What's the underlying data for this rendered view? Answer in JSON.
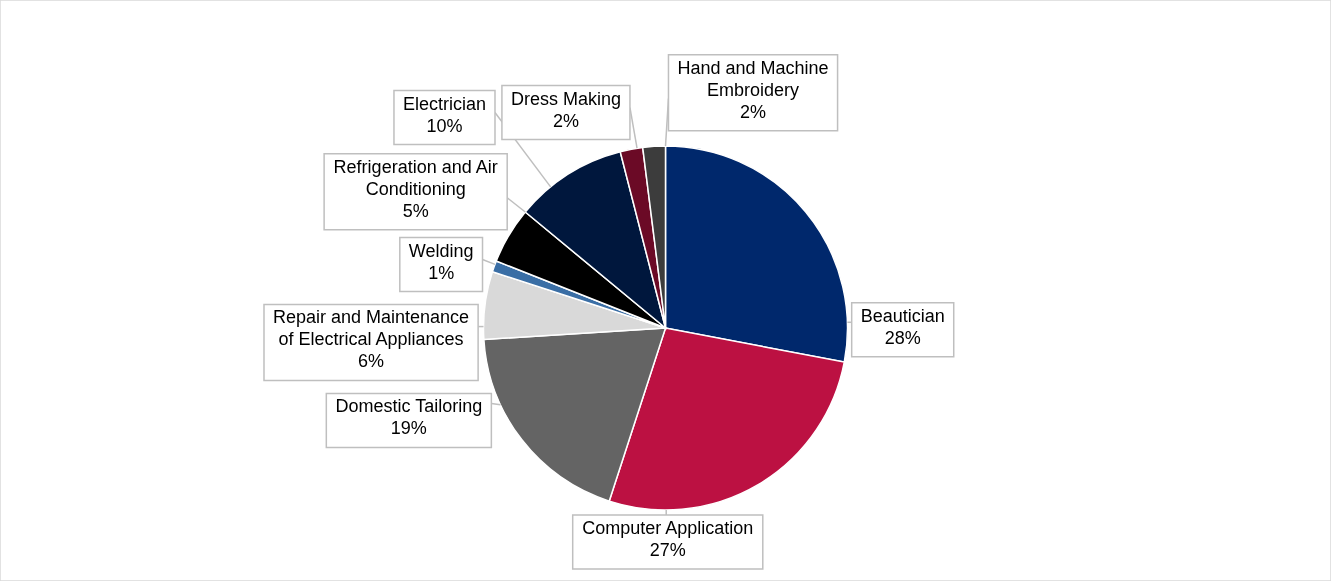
{
  "chart_data": {
    "type": "pie",
    "categories": [
      "Beautician",
      "Computer Application",
      "Domestic Tailoring",
      "Repair and Maintenance of Electrical Appliances",
      "Welding",
      "Refrigeration and Air Conditioning",
      "Electrician",
      "Dress Making",
      "Hand and Machine Embroidery"
    ],
    "values": [
      28,
      27,
      19,
      6,
      1,
      5,
      10,
      2,
      2
    ],
    "value_labels": [
      "28%",
      "27%",
      "19%",
      "6%",
      "1%",
      "5%",
      "10%",
      "2%",
      "2%"
    ],
    "colors": [
      "#00286c",
      "#bc1142",
      "#646464",
      "#d9d9d9",
      "#3a6ea5",
      "#000000",
      "#00173d",
      "#6b0a26",
      "#3c3c3c"
    ]
  }
}
